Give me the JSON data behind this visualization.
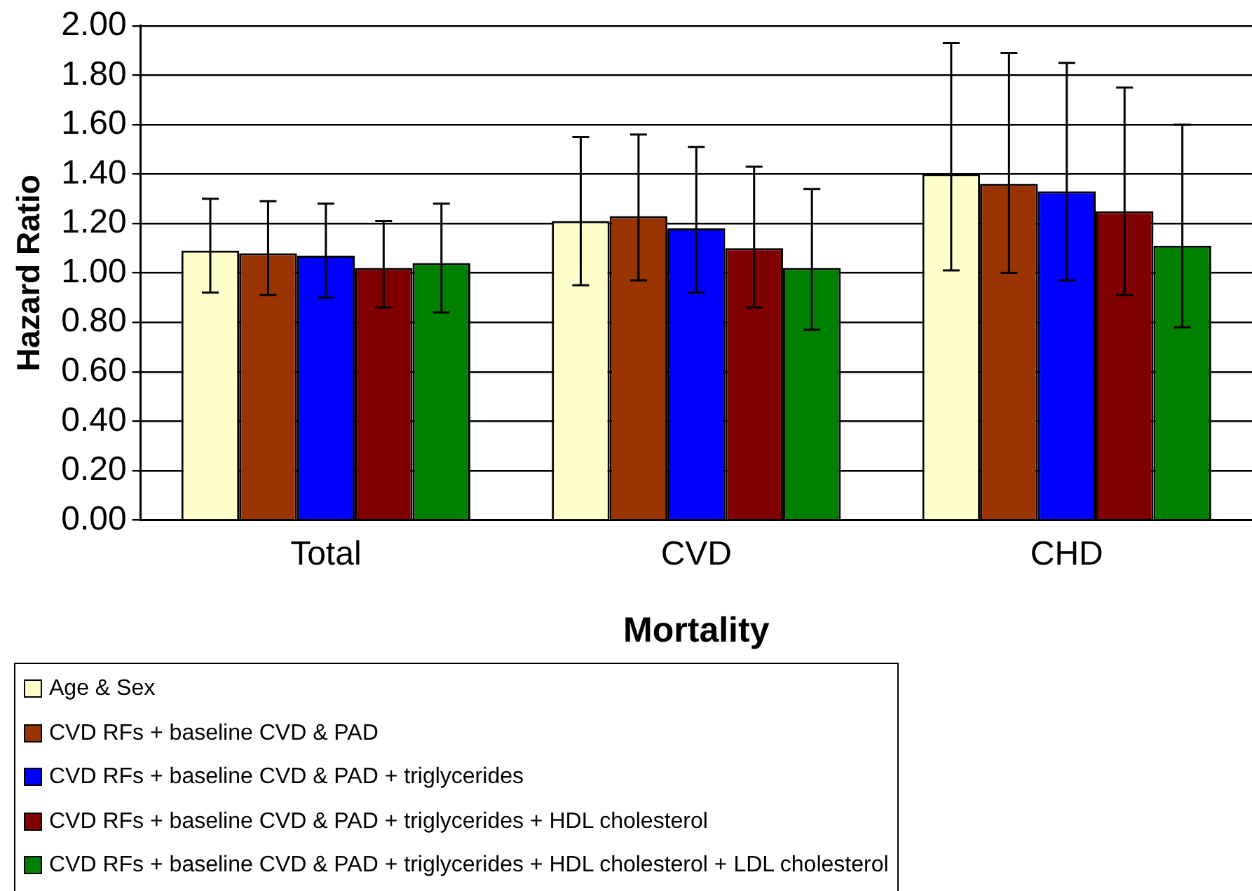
{
  "chart_data": {
    "type": "bar",
    "xlabel": "Mortality",
    "ylabel": "Hazard Ratio",
    "categories": [
      "Total",
      "CVD",
      "CHD"
    ],
    "series": [
      {
        "name": "Age & Sex",
        "color": "#ffffcc",
        "values": [
          1.09,
          1.21,
          1.4
        ],
        "errors": [
          [
            0.92,
            1.3
          ],
          [
            0.95,
            1.55
          ],
          [
            1.01,
            1.93
          ]
        ]
      },
      {
        "name": "CVD RFs + baseline CVD & PAD",
        "color": "#993300",
        "values": [
          1.08,
          1.23,
          1.36
        ],
        "errors": [
          [
            0.91,
            1.29
          ],
          [
            0.97,
            1.56
          ],
          [
            1.0,
            1.89
          ]
        ]
      },
      {
        "name": "CVD RFs + baseline CVD & PAD + triglycerides",
        "color": "#0000ff",
        "values": [
          1.07,
          1.18,
          1.33
        ],
        "errors": [
          [
            0.9,
            1.28
          ],
          [
            0.92,
            1.51
          ],
          [
            0.97,
            1.85
          ]
        ]
      },
      {
        "name": "CVD RFs + baseline CVD & PAD + triglycerides + HDL cholesterol",
        "color": "#800000",
        "values": [
          1.02,
          1.1,
          1.25
        ],
        "errors": [
          [
            0.86,
            1.21
          ],
          [
            0.86,
            1.43
          ],
          [
            0.91,
            1.75
          ]
        ]
      },
      {
        "name": "CVD RFs + baseline CVD & PAD + triglycerides + HDL cholesterol + LDL cholesterol",
        "color": "#008000",
        "values": [
          1.04,
          1.02,
          1.11
        ],
        "errors": [
          [
            0.84,
            1.28
          ],
          [
            0.77,
            1.34
          ],
          [
            0.78,
            1.6
          ]
        ]
      }
    ],
    "ylim": [
      0,
      2
    ],
    "yticks": [
      {
        "value": 0,
        "label": "0.00"
      },
      {
        "value": 0.2,
        "label": "0.20"
      },
      {
        "value": 0.4,
        "label": "0.40"
      },
      {
        "value": 0.6,
        "label": "0.60"
      },
      {
        "value": 0.8,
        "label": "0.80"
      },
      {
        "value": 1,
        "label": "1.00"
      },
      {
        "value": 1.2,
        "label": "1.20"
      },
      {
        "value": 1.4,
        "label": "1.40"
      },
      {
        "value": 1.6,
        "label": "1.60"
      },
      {
        "value": 1.8,
        "label": "1.80"
      },
      {
        "value": 2,
        "label": "2.00"
      }
    ],
    "grid": "y",
    "legend": "bottom"
  }
}
